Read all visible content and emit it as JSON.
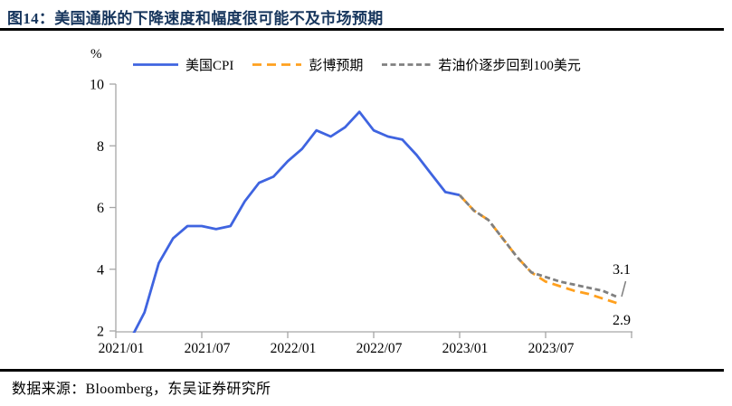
{
  "header": {
    "title": "图14：美国通胀的下降速度和幅度很可能不及市场预期"
  },
  "footer": {
    "source": "数据来源：Bloomberg，东吴证券研究所"
  },
  "colors": {
    "title_navy": "#17365D",
    "divider_black": "#000000",
    "axis_gray": "#A6A6A6",
    "us_cpi_blue": "#3F64E0",
    "bloomberg_orange": "#FFA01E",
    "oil_scenario_gray": "#808080"
  },
  "chart_data": {
    "type": "line",
    "unit": "%",
    "title": "",
    "xlabel": "",
    "ylabel": "%",
    "ylim": [
      2,
      10
    ],
    "y_ticks": [
      10,
      8,
      6,
      4,
      2
    ],
    "x_tick_labels": [
      "2021/01",
      "2021/07",
      "2022/01",
      "2022/07",
      "2023/01",
      "2023/07"
    ],
    "x_start": "2021/01",
    "x_frequency": "monthly",
    "x_months_per_tick": 6,
    "grid": false,
    "legend_position": "top",
    "series": [
      {
        "name": "美国CPI",
        "color": "#3F64E0",
        "line_style": "solid",
        "start_month_index": 0,
        "start_label": "2021/01",
        "values": [
          1.4,
          1.7,
          2.6,
          4.2,
          5.0,
          5.4,
          5.4,
          5.3,
          5.4,
          6.2,
          6.8,
          7.0,
          7.5,
          7.9,
          8.5,
          8.3,
          8.6,
          9.1,
          8.5,
          8.3,
          8.2,
          7.7,
          7.1,
          6.5,
          6.4
        ]
      },
      {
        "name": "彭博预期",
        "color": "#FFA01E",
        "line_style": "dashed",
        "start_month_index": 24,
        "start_label": "2023/01",
        "values": [
          6.4,
          5.9,
          5.6,
          5.0,
          4.4,
          3.9,
          3.6,
          3.45,
          3.3,
          3.2,
          3.05,
          2.9
        ],
        "end_value_label": "2.9"
      },
      {
        "name": "若油价逐步回到100美元",
        "color": "#808080",
        "line_style": "short-dashed",
        "start_month_index": 24,
        "start_label": "2023/01",
        "values": [
          6.4,
          5.9,
          5.6,
          5.0,
          4.4,
          3.9,
          3.75,
          3.6,
          3.5,
          3.4,
          3.3,
          3.1
        ],
        "end_value_label": "3.1"
      }
    ],
    "annotations": [
      {
        "text": "3.1",
        "attached_series": "若油价逐步回到100美元"
      },
      {
        "text": "2.9",
        "attached_series": "彭博预期"
      }
    ]
  }
}
